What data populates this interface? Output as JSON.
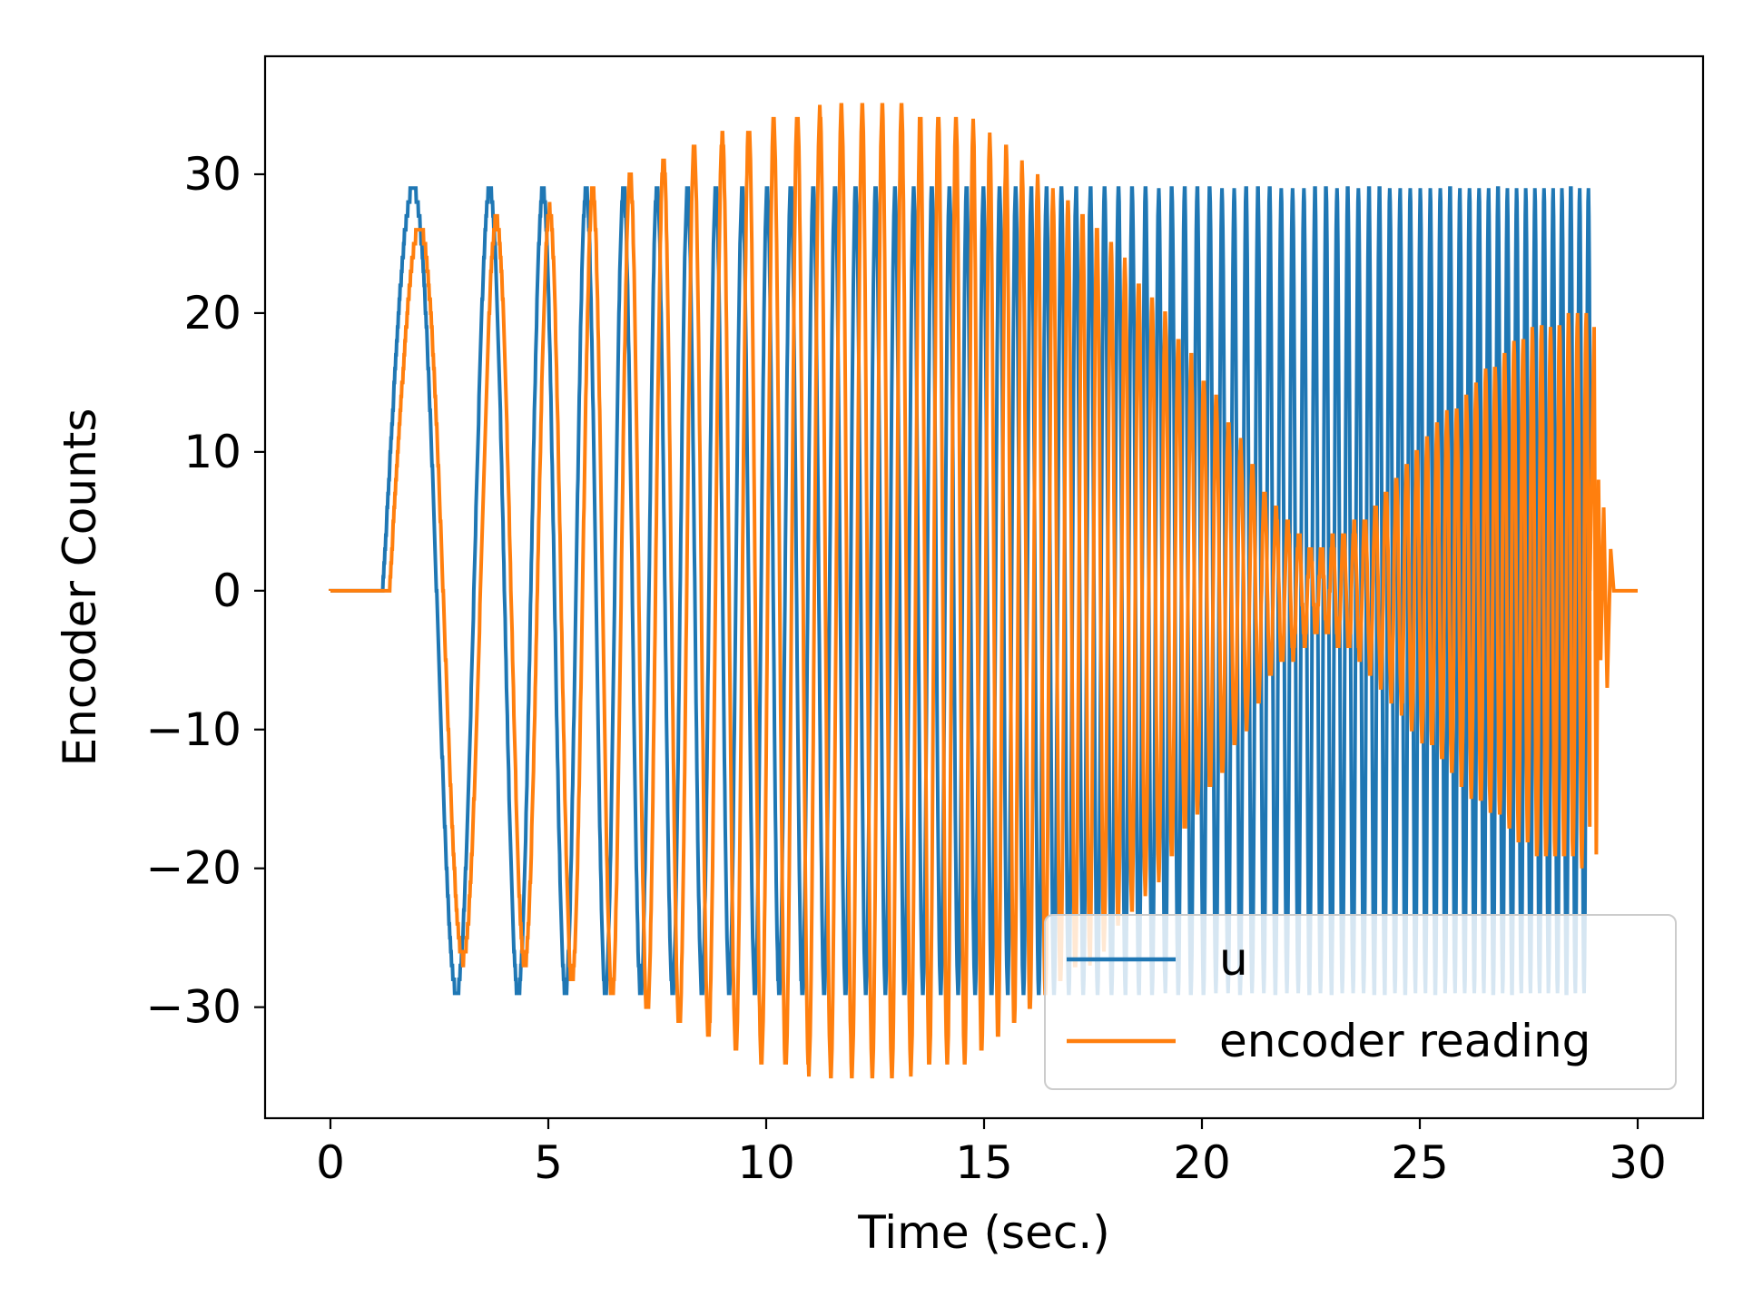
{
  "chart_data": {
    "type": "line",
    "xlabel": "Time (sec.)",
    "ylabel": "Encoder Counts",
    "xlim": [
      -1.5,
      31.5
    ],
    "ylim": [
      -38,
      38.5
    ],
    "xticks": [
      0,
      5,
      10,
      15,
      20,
      25,
      30
    ],
    "xtick_labels": [
      "0",
      "5",
      "10",
      "15",
      "20",
      "25",
      "30"
    ],
    "yticks": [
      -30,
      -20,
      -10,
      0,
      10,
      20,
      30
    ],
    "ytick_labels": [
      "−30",
      "−20",
      "−10",
      "0",
      "10",
      "20",
      "30"
    ],
    "grid": false,
    "legend_position": "lower-right",
    "signal": {
      "t_start": 1.2,
      "t_end": 28.9,
      "f0_hz": 0.3,
      "f1_hz": 5.0,
      "samples_per_sec": 100
    },
    "series": [
      {
        "name": "u",
        "color": "#1f77b4",
        "amplitude": 29,
        "envelope_points": [
          [
            1.2,
            29
          ],
          [
            28.9,
            29
          ]
        ]
      },
      {
        "name": "encoder reading",
        "color": "#ff7f0e",
        "lag_sec": 0.15,
        "envelope_points": [
          [
            1.2,
            26
          ],
          [
            4.5,
            27
          ],
          [
            6.0,
            29
          ],
          [
            7.5,
            31
          ],
          [
            9.0,
            33
          ],
          [
            10.5,
            34.5
          ],
          [
            12.5,
            35
          ],
          [
            14.5,
            34
          ],
          [
            16.0,
            30
          ],
          [
            17.5,
            26
          ],
          [
            19.0,
            20
          ],
          [
            20.5,
            12
          ],
          [
            21.5,
            6
          ],
          [
            22.5,
            3
          ],
          [
            23.5,
            5
          ],
          [
            24.5,
            9
          ],
          [
            25.5,
            13
          ],
          [
            26.5,
            16
          ],
          [
            27.5,
            19
          ],
          [
            28.9,
            20
          ]
        ],
        "tail_points": [
          [
            28.9,
            0
          ],
          [
            29.0,
            19
          ],
          [
            29.05,
            -19
          ],
          [
            29.1,
            8
          ],
          [
            29.15,
            -5
          ],
          [
            29.22,
            6
          ],
          [
            29.3,
            -7
          ],
          [
            29.38,
            3
          ],
          [
            29.45,
            0
          ],
          [
            30.0,
            0
          ]
        ]
      }
    ]
  }
}
